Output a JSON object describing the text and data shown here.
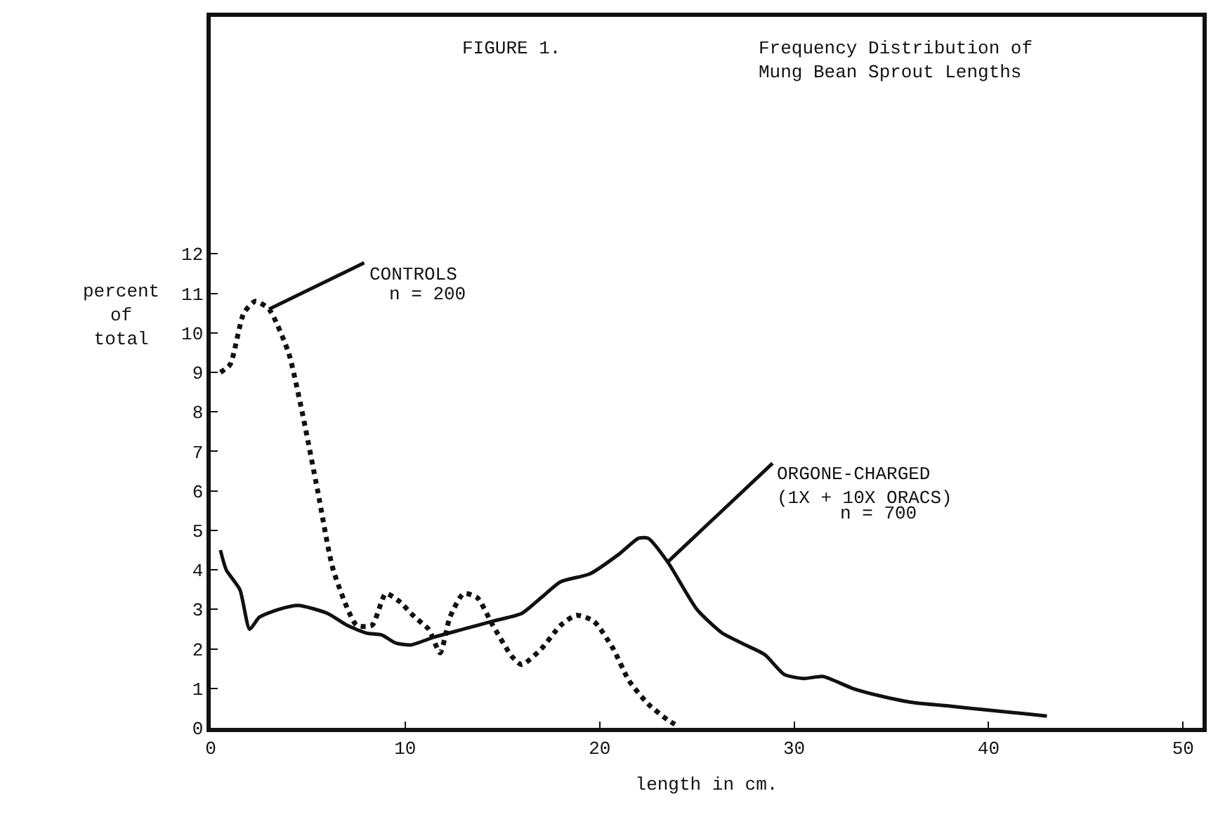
{
  "chart_data": {
    "type": "line",
    "title": "FIGURE 1.",
    "subtitle": "Frequency Distribution of Mung Bean Sprout Lengths",
    "xlabel": "length in cm.",
    "ylabel": "percent of total",
    "xlim": [
      0,
      51
    ],
    "xticks": [
      0,
      10,
      20,
      30,
      40,
      50
    ],
    "ylim": [
      0,
      18
    ],
    "yticks": [
      0,
      1,
      2,
      3,
      4,
      5,
      6,
      7,
      8,
      9,
      10,
      11,
      12
    ],
    "grid": false,
    "legend": false,
    "series": [
      {
        "name": "CONTROLS",
        "color": "#111111",
        "line_style": "dotted",
        "x": [
          0.5,
          1,
          1.7,
          2.3,
          3,
          4,
          4.7,
          5.5,
          6.3,
          7.5,
          8.3,
          9,
          9.7,
          10.5,
          11.2,
          11.8,
          12.3,
          13,
          13.7,
          14.5,
          15.5,
          16,
          17,
          18,
          18.8,
          19.7,
          20.7,
          21.5,
          22.5,
          23.5,
          24
        ],
        "values": [
          9.0,
          9.2,
          10.5,
          10.8,
          10.6,
          9.5,
          8,
          6,
          4,
          2.6,
          2.6,
          3.4,
          3.2,
          2.8,
          2.5,
          1.9,
          2.8,
          3.4,
          3.3,
          2.6,
          1.8,
          1.6,
          2.0,
          2.6,
          2.85,
          2.7,
          2.0,
          1.2,
          0.6,
          0.2,
          0.05
        ]
      },
      {
        "name": "ORGONE-CHARGED (1X + 10X ORACS)",
        "color": "#111111",
        "line_style": "solid",
        "x": [
          0.5,
          0.8,
          1.5,
          2,
          2.5,
          3.5,
          4.5,
          6,
          7,
          8,
          8.8,
          9.5,
          10.3,
          11.5,
          13,
          14.5,
          16,
          17,
          18,
          19.5,
          21,
          22,
          22.5,
          23.5,
          25,
          26.3,
          27.5,
          28.5,
          29.5,
          30.5,
          31.5,
          33,
          34.5,
          36,
          38,
          40,
          42,
          43
        ],
        "values": [
          4.5,
          4.0,
          3.5,
          2.5,
          2.8,
          3.0,
          3.1,
          2.9,
          2.6,
          2.4,
          2.35,
          2.15,
          2.1,
          2.3,
          2.5,
          2.7,
          2.9,
          3.3,
          3.7,
          3.9,
          4.4,
          4.8,
          4.8,
          4.2,
          3.0,
          2.4,
          2.1,
          1.85,
          1.35,
          1.25,
          1.3,
          1.0,
          0.8,
          0.65,
          0.55,
          0.45,
          0.35,
          0.3
        ]
      }
    ],
    "annotations": [
      "n = 200",
      "n = 700"
    ],
    "marker": "none"
  }
}
